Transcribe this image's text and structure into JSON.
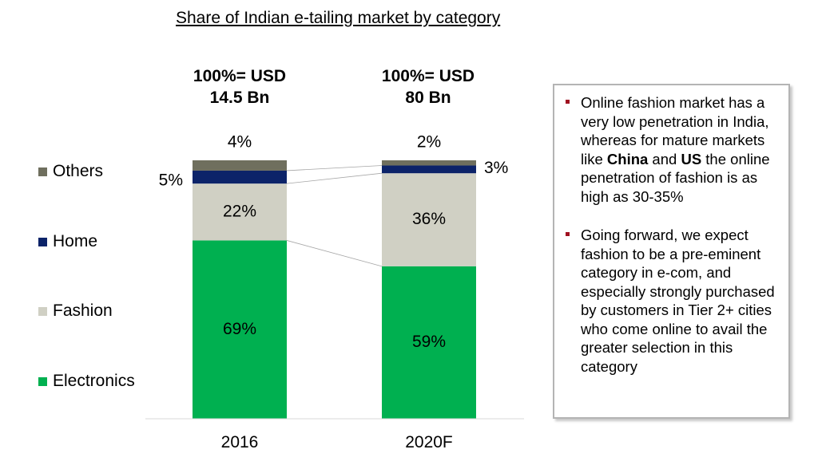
{
  "chart_data": {
    "type": "bar",
    "stacked": true,
    "percent_stacked": true,
    "title": "Share of Indian e-tailing market by category",
    "categories": [
      "2016",
      "2020F"
    ],
    "totals": [
      "100%= USD 14.5 Bn",
      "100%= USD 80 Bn"
    ],
    "totals_lines": [
      [
        "100%= USD",
        "14.5 Bn"
      ],
      [
        "100%= USD",
        "80 Bn"
      ]
    ],
    "series": [
      {
        "name": "Electronics",
        "color": "#00B050",
        "values": [
          69,
          59
        ],
        "labels": [
          "69%",
          "59%"
        ]
      },
      {
        "name": "Fashion",
        "color": "#D0D0C4",
        "values": [
          22,
          36
        ],
        "labels": [
          "22%",
          "36%"
        ]
      },
      {
        "name": "Home",
        "color": "#0C2369",
        "values": [
          5,
          3
        ],
        "labels": [
          "5%",
          "3%"
        ]
      },
      {
        "name": "Others",
        "color": "#6F6F5E",
        "values": [
          4,
          2
        ],
        "labels": [
          "4%",
          "2%"
        ]
      }
    ],
    "legend": [
      "Others",
      "Home",
      "Fashion",
      "Electronics"
    ],
    "legend_position": "left",
    "grid": false,
    "ylim": [
      0,
      100
    ]
  },
  "notes": {
    "bullet_color": "#A01020",
    "items": [
      {
        "parts": [
          {
            "text": "Online fashion market has a very low penetration in India, whereas for mature markets like ",
            "bold": false
          },
          {
            "text": "China",
            "bold": true
          },
          {
            "text": " and ",
            "bold": false
          },
          {
            "text": "US",
            "bold": true
          },
          {
            "text": " the online penetration of fashion is as high as 30-35%",
            "bold": false
          }
        ]
      },
      {
        "parts": [
          {
            "text": "Going forward, we expect fashion to be a pre-eminent category in e-com, and especially strongly purchased by customers in Tier 2+ cities who come online to avail the greater selection in this category",
            "bold": false
          }
        ]
      }
    ]
  }
}
